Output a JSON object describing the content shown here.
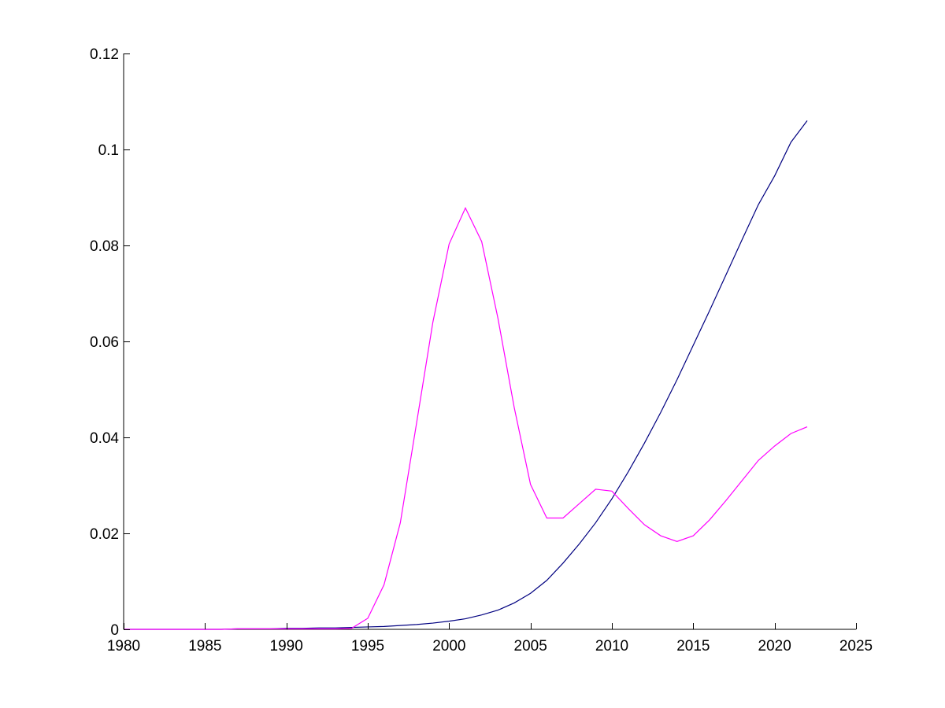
{
  "chart_data": {
    "type": "line",
    "title": "",
    "xlabel": "",
    "ylabel": "",
    "xlim": [
      1980,
      2025
    ],
    "ylim": [
      0,
      0.12
    ],
    "grid": false,
    "x_ticks": [
      1980,
      1985,
      1990,
      1995,
      2000,
      2005,
      2010,
      2015,
      2020,
      2025
    ],
    "x_tick_labels": [
      "1980",
      "1985",
      "1990",
      "1995",
      "2000",
      "2005",
      "2010",
      "2015",
      "2020",
      "2025"
    ],
    "y_ticks": [
      0,
      0.02,
      0.04,
      0.06,
      0.08,
      0.1,
      0.12
    ],
    "y_tick_labels": [
      "0",
      "0.02",
      "0.04",
      "0.06",
      "0.08",
      "0.1",
      "0.12"
    ],
    "x": [
      1980,
      1981,
      1982,
      1983,
      1984,
      1985,
      1986,
      1987,
      1988,
      1989,
      1990,
      1991,
      1992,
      1993,
      1994,
      1995,
      1996,
      1997,
      1998,
      1999,
      2000,
      2001,
      2002,
      2003,
      2004,
      2005,
      2006,
      2007,
      2008,
      2009,
      2010,
      2011,
      2012,
      2013,
      2014,
      2015,
      2016,
      2017,
      2018,
      2019,
      2020,
      2021,
      2022
    ],
    "series": [
      {
        "color": "#000080",
        "values": [
          0,
          0,
          0,
          0,
          0,
          0,
          0,
          0.0001,
          0.0001,
          0.0001,
          0.0002,
          0.0002,
          0.0003,
          0.0003,
          0.0004,
          0.0005,
          0.0006,
          0.0008,
          0.001,
          0.0013,
          0.0017,
          0.0022,
          0.003,
          0.004,
          0.0055,
          0.0075,
          0.0102,
          0.0138,
          0.0178,
          0.0222,
          0.0272,
          0.0328,
          0.0388,
          0.0452,
          0.052,
          0.0592,
          0.0664,
          0.0738,
          0.0812,
          0.0885,
          0.0945,
          0.1015,
          0.106
        ]
      },
      {
        "color": "#ff00ff",
        "values": [
          0,
          0,
          0,
          0,
          0,
          0,
          0,
          0.0001,
          0.0001,
          0.0001,
          0.0001,
          0.0001,
          0.0001,
          0.0001,
          0.0002,
          0.0023,
          0.0093,
          0.0222,
          0.043,
          0.064,
          0.0803,
          0.0878,
          0.0808,
          0.0648,
          0.0462,
          0.0302,
          0.0232,
          0.0232,
          0.0262,
          0.0292,
          0.0288,
          0.0252,
          0.0218,
          0.0195,
          0.0183,
          0.0195,
          0.0228,
          0.0268,
          0.031,
          0.0352,
          0.0382,
          0.0408,
          0.0422
        ]
      }
    ]
  }
}
